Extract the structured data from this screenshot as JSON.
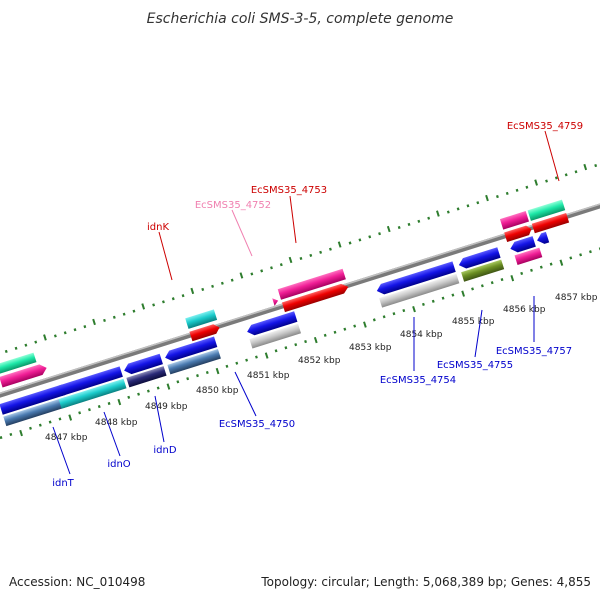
{
  "title": "Escherichia coli SMS-3-5, complete genome",
  "footer": {
    "accession": "Accession: NC_010498",
    "topology": "Topology: circular; Length: 5,068,389 bp; Genes: 4,855"
  },
  "ticks": [
    "4847 kbp",
    "4848 kbp",
    "4849 kbp",
    "4850 kbp",
    "4851 kbp",
    "4852 kbp",
    "4853 kbp",
    "4854 kbp",
    "4855 kbp",
    "4856 kbp",
    "4857 kbp"
  ],
  "labels": {
    "idnK": "idnK",
    "ec4752": "EcSMS35_4752",
    "ec4753": "EcSMS35_4753",
    "ec4759": "EcSMS35_4759",
    "idnT": "idnT",
    "idnO": "idnO",
    "idnD": "idnD",
    "ec4750": "EcSMS35_4750",
    "ec4754": "EcSMS35_4754",
    "ec4755": "EcSMS35_4755",
    "ec4757": "EcSMS35_4757"
  },
  "colors": {
    "forward_label": "#cc0000",
    "reverse_label": "#0000cc",
    "faint_label": "#f080b0",
    "backbone": "#888888",
    "tick": "#2e7d2e"
  }
}
